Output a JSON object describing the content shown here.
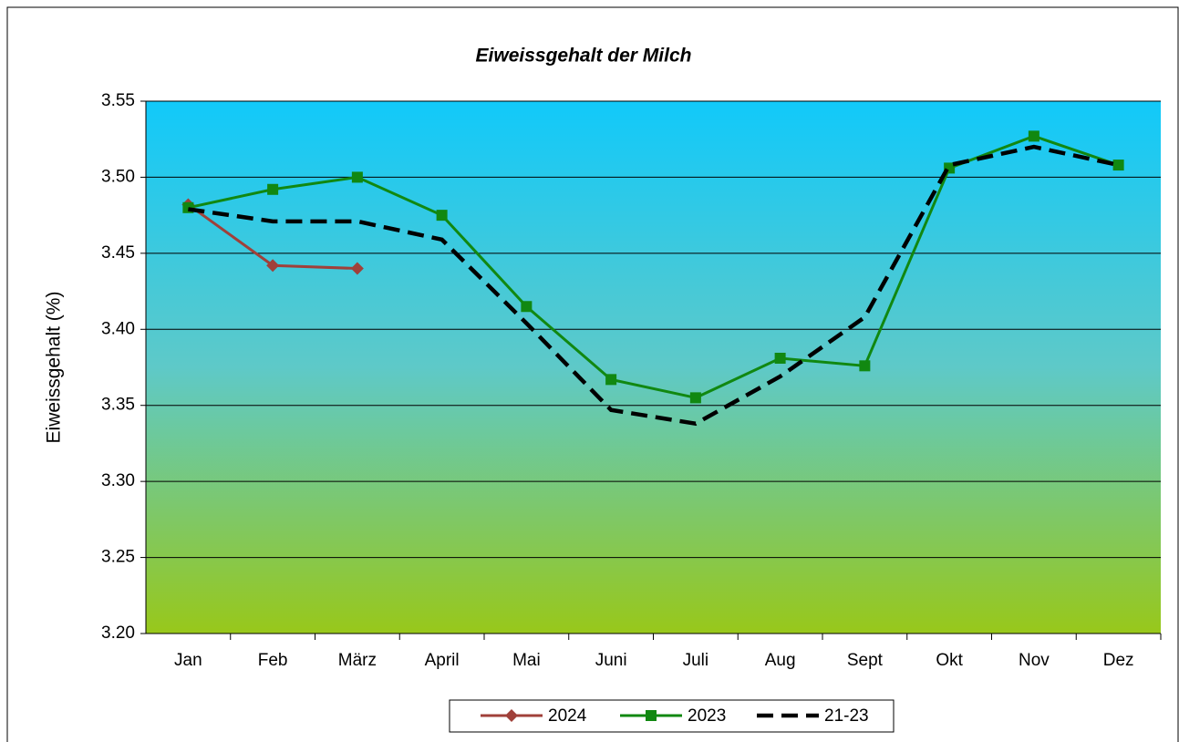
{
  "chart_data": {
    "type": "line",
    "title": "Eiweissgehalt der Milch",
    "y_label": "Eiweissgehalt (%)",
    "categories": [
      "Jan",
      "Feb",
      "März",
      "April",
      "Mai",
      "Juni",
      "Juli",
      "Aug",
      "Sept",
      "Okt",
      "Nov",
      "Dez"
    ],
    "series": [
      {
        "name": "2024",
        "color": "#a0403a",
        "marker": "diamond",
        "dashed": false,
        "values": [
          3.482,
          3.442,
          3.44,
          null,
          null,
          null,
          null,
          null,
          null,
          null,
          null,
          null
        ]
      },
      {
        "name": "2023",
        "color": "#118811",
        "marker": "square",
        "dashed": false,
        "values": [
          3.48,
          3.492,
          3.5,
          3.475,
          3.415,
          3.367,
          3.355,
          3.381,
          3.376,
          3.506,
          3.527,
          3.508
        ]
      },
      {
        "name": "21-23",
        "color": "#000000",
        "marker": "none",
        "dashed": true,
        "values": [
          3.479,
          3.471,
          3.471,
          3.459,
          3.404,
          3.347,
          3.338,
          3.369,
          3.408,
          3.508,
          3.52,
          3.508
        ]
      }
    ],
    "ylim": [
      3.2,
      3.55
    ],
    "yticks": [
      {
        "value": 3.2,
        "label": "3.20"
      },
      3.25,
      {
        "value": 3.3,
        "label": "3.30"
      },
      3.35,
      {
        "value": 3.4,
        "label": "3.40"
      },
      3.45,
      {
        "value": 3.5,
        "label": "3.50"
      },
      3.55
    ],
    "grid": true,
    "legend": "bottom"
  }
}
